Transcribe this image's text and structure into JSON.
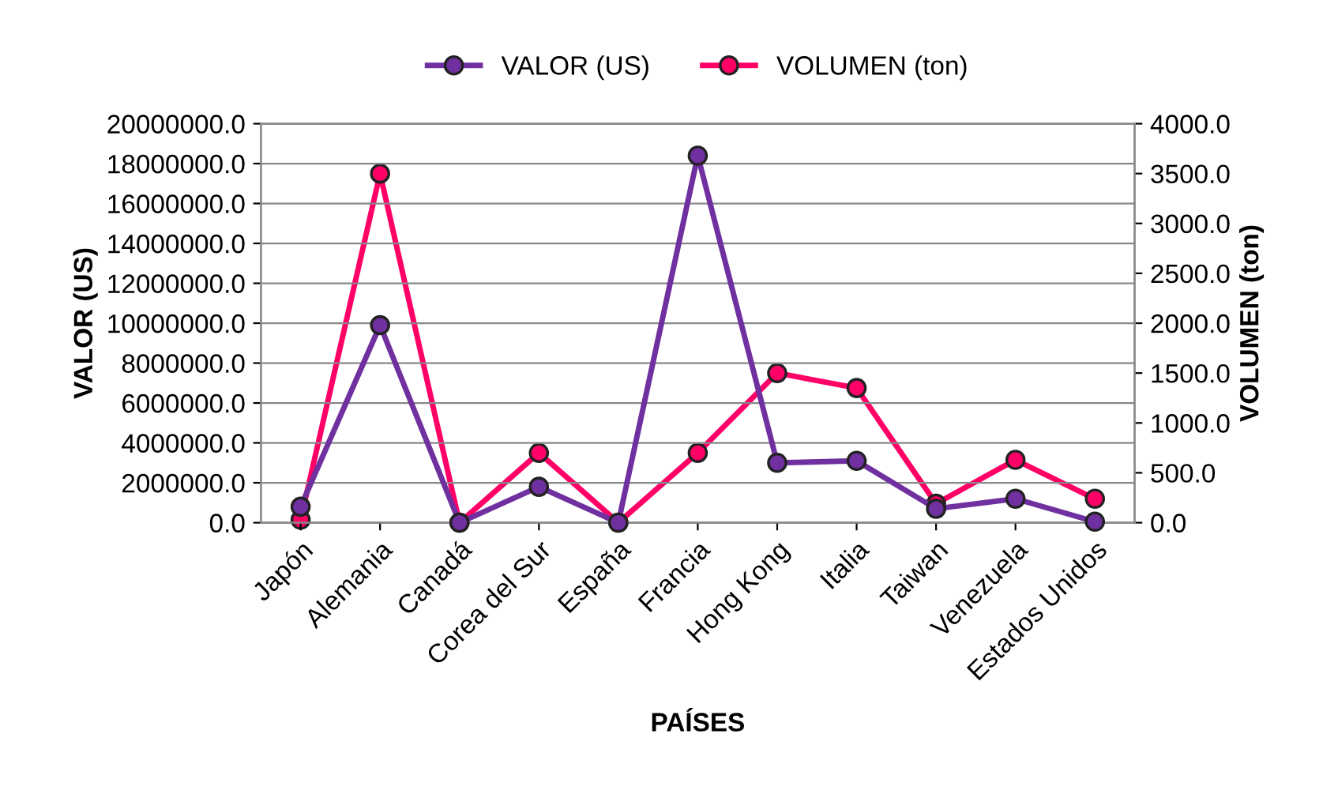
{
  "chart_data": {
    "type": "line",
    "xlabel": "PAÍSES",
    "ylabel": "VALOR (US)",
    "y2label": "VOLUMEN (ton)",
    "categories": [
      "Japón",
      "Alemania",
      "Canadá",
      "Corea del Sur",
      "España",
      "Francia",
      "Hong Kong",
      "Italia",
      "Taiwan",
      "Venezuela",
      "Estados Unidos"
    ],
    "series": [
      {
        "name": "VALOR (US)",
        "color": "#7030a0",
        "values": [
          800000,
          9900000,
          0,
          1800000,
          0,
          18400000,
          3000000,
          3100000,
          700000,
          1200000,
          50000
        ]
      },
      {
        "name": "VOLUMEN (ton)",
        "color": "#ff0066",
        "axis": "y2",
        "values": [
          30,
          3500,
          0,
          700,
          0,
          700,
          1500,
          1350,
          190,
          630,
          240
        ]
      }
    ],
    "ylim": [
      0,
      20000000
    ],
    "yticks": [
      {
        "value": 0,
        "label": "0.0"
      },
      {
        "value": 2000000,
        "label": "2000000.0"
      },
      {
        "value": 4000000,
        "label": "4000000.0"
      },
      {
        "value": 6000000,
        "label": "6000000.0"
      },
      {
        "value": 8000000,
        "label": "8000000.0"
      },
      {
        "value": 10000000,
        "label": "10000000.0"
      },
      {
        "value": 12000000,
        "label": "12000000.0"
      },
      {
        "value": 14000000,
        "label": "14000000.0"
      },
      {
        "value": 16000000,
        "label": "16000000.0"
      },
      {
        "value": 18000000,
        "label": "18000000.0"
      },
      {
        "value": 20000000,
        "label": "20000000.0"
      }
    ],
    "y2lim": [
      0,
      4000
    ],
    "y2ticks": [
      {
        "value": 0,
        "label": "0.0"
      },
      {
        "value": 500,
        "label": "500.0"
      },
      {
        "value": 1000,
        "label": "1000.0"
      },
      {
        "value": 1500,
        "label": "1500.0"
      },
      {
        "value": 2000,
        "label": "2000.0"
      },
      {
        "value": 2500,
        "label": "2500.0"
      },
      {
        "value": 3000,
        "label": "3000.0"
      },
      {
        "value": 3500,
        "label": "3500.0"
      },
      {
        "value": 4000,
        "label": "4000.0"
      }
    ],
    "grid": "y",
    "legend": "top",
    "marker": "circle",
    "line_style": "solid"
  }
}
